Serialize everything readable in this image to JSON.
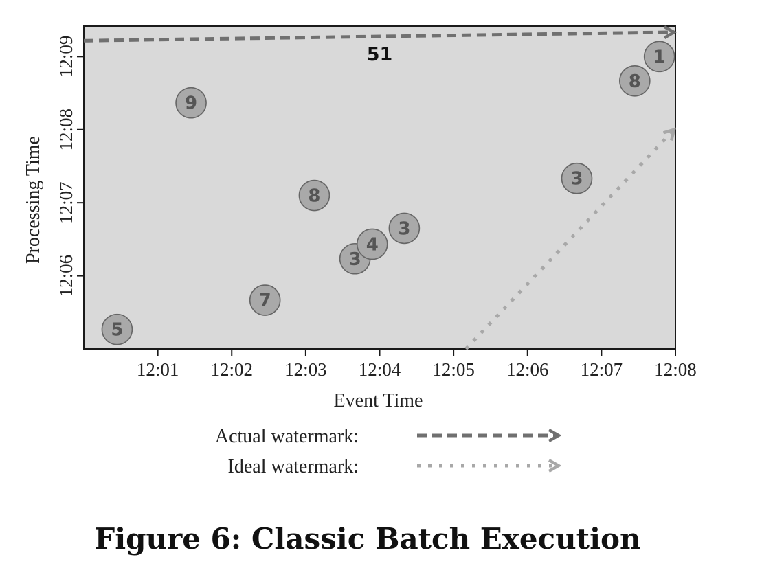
{
  "caption": "Figure 6: Classic Batch Execution",
  "chart_data": {
    "type": "scatter",
    "xlabel": "Event Time",
    "ylabel": "Processing Time",
    "x_ticks": [
      "12:01",
      "12:02",
      "12:03",
      "12:04",
      "12:05",
      "12:06",
      "12:07",
      "12:08"
    ],
    "y_ticks": [
      "12:06",
      "12:07",
      "12:08",
      "12:09"
    ],
    "xlim": [
      "12:00",
      "12:08"
    ],
    "ylim": [
      "12:05:00",
      "12:09:25"
    ],
    "points": [
      {
        "x": "12:00:27",
        "y": "12:05:16",
        "value": 5
      },
      {
        "x": "12:01:27",
        "y": "12:08:22",
        "value": 9
      },
      {
        "x": "12:02:27",
        "y": "12:05:40",
        "value": 7
      },
      {
        "x": "12:03:07",
        "y": "12:07:06",
        "value": 8
      },
      {
        "x": "12:03:40",
        "y": "12:06:14",
        "value": 3
      },
      {
        "x": "12:03:54",
        "y": "12:06:26",
        "value": 4
      },
      {
        "x": "12:04:20",
        "y": "12:06:39",
        "value": 3
      },
      {
        "x": "12:06:40",
        "y": "12:07:20",
        "value": 3
      },
      {
        "x": "12:07:27",
        "y": "12:08:40",
        "value": 8
      },
      {
        "x": "12:07:47",
        "y": "12:09:00",
        "value": 1
      }
    ],
    "series": [
      {
        "name": "Actual watermark",
        "style": "dashed",
        "color": "#707070",
        "points": [
          {
            "x": "12:00",
            "y": "12:09:13"
          },
          {
            "x": "12:08",
            "y": "12:09:20"
          }
        ]
      },
      {
        "name": "Ideal watermark",
        "style": "dotted",
        "color": "#a8a8a8",
        "points": [
          {
            "x": "12:05:10",
            "y": "12:05:00"
          },
          {
            "x": "12:08",
            "y": "12:08:00"
          }
        ]
      }
    ],
    "annotations": [
      {
        "text": "51",
        "x": "12:04",
        "y": "12:09:07"
      }
    ],
    "legend": {
      "position": "bottom"
    },
    "background": "#d9d9d9",
    "grid": false
  }
}
